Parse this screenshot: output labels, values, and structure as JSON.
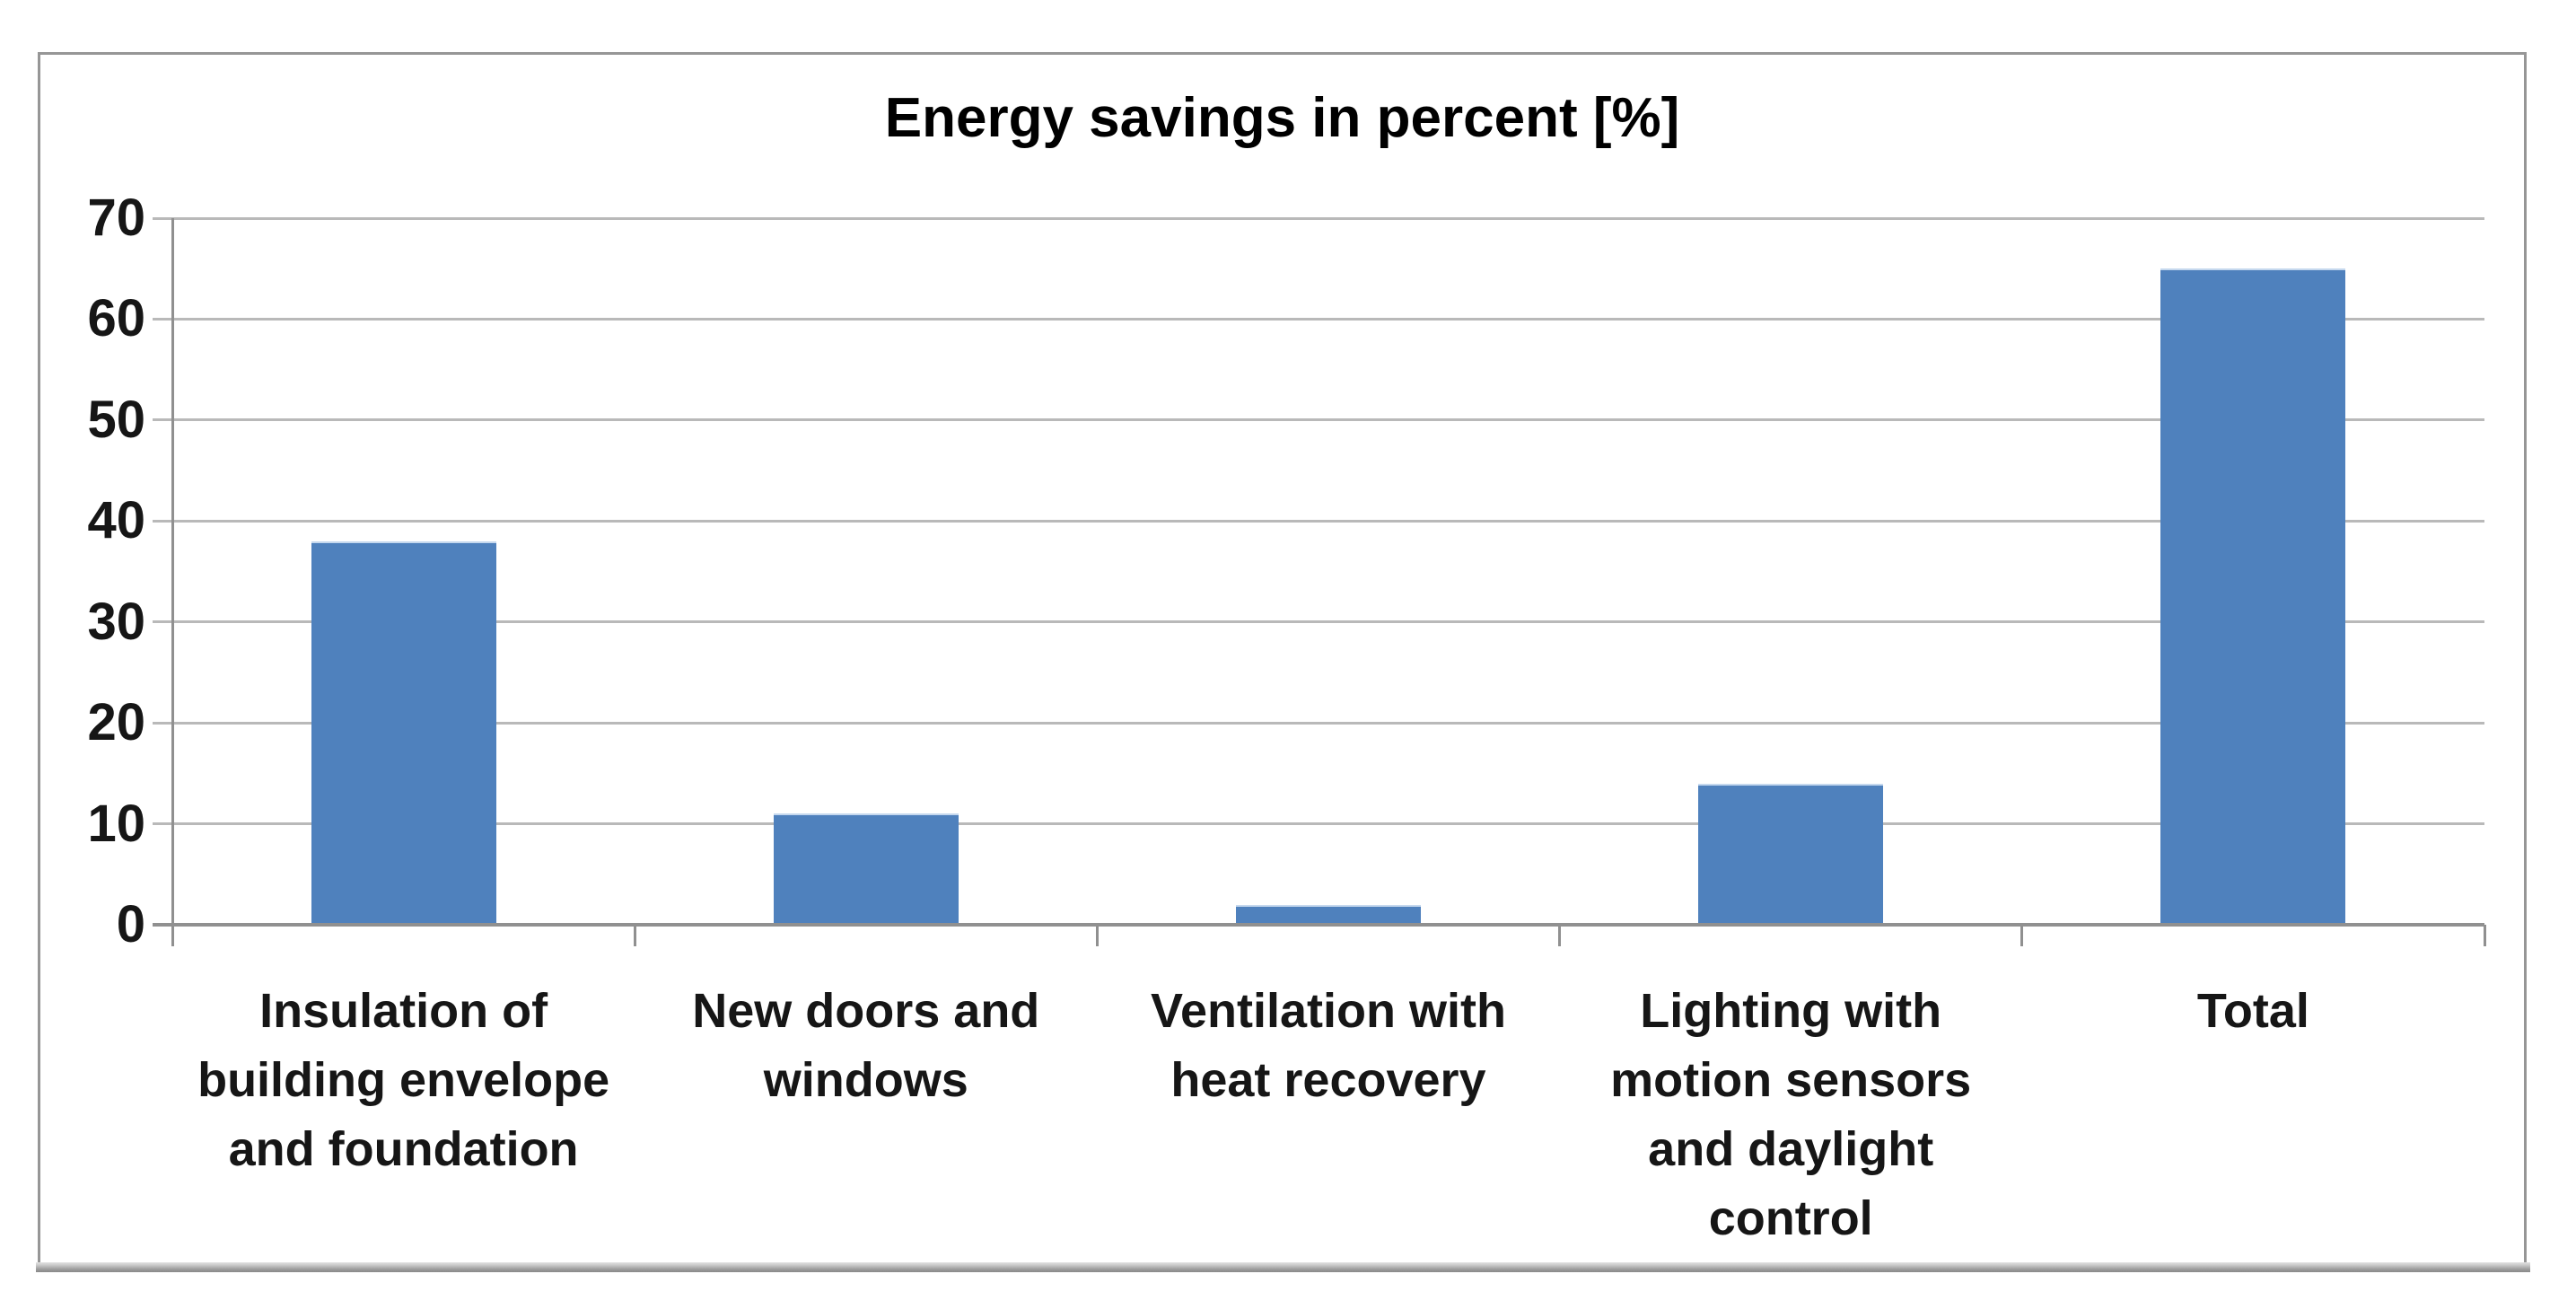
{
  "page": {
    "background_color": "#ffffff",
    "frame_border_color": "#969696"
  },
  "chart_data": {
    "type": "bar",
    "title": "Energy savings in percent [%]",
    "categories": [
      "Insulation of building envelope and foundation",
      "New doors and windows",
      "Ventilation with heat recovery",
      "Lighting with motion sensors and daylight control",
      "Total"
    ],
    "category_labels_displayed": [
      "Insulation of\nbuilding envelope\nand foundation",
      "New doors and\nwindows",
      "Ventilation with\nheat recovery",
      "Lighting with\nmotion sensors\nand daylight\ncontrol",
      "Total"
    ],
    "values": [
      38,
      11,
      2,
      14,
      65
    ],
    "xlabel": "",
    "ylabel": "",
    "ylim": [
      0,
      70
    ],
    "y_ticks": [
      0,
      10,
      20,
      30,
      40,
      50,
      60,
      70
    ],
    "grid": true,
    "legend_position": "none",
    "bar_color": "#4f81bd",
    "gridline_color": "#b9b9b9",
    "axis_color": "#909090",
    "text_color": "#161616"
  }
}
